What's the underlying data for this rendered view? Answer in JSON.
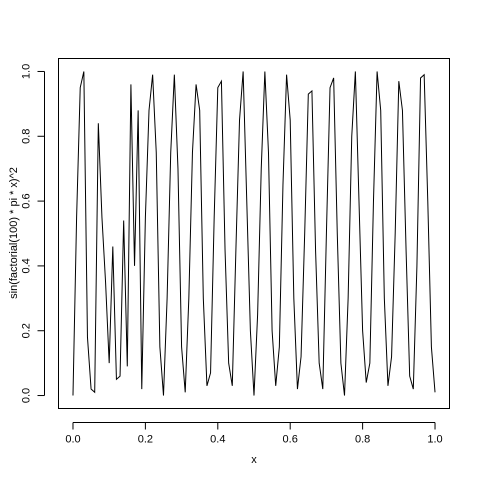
{
  "chart_data": {
    "type": "line",
    "xlabel": "x",
    "ylabel": "sin(factorial(100) * pi * x)^2",
    "color": "#000000",
    "x": [
      0,
      0.01,
      0.02,
      0.03,
      0.04,
      0.05,
      0.06,
      0.07,
      0.08,
      0.09,
      0.1,
      0.11,
      0.12,
      0.13,
      0.14,
      0.15,
      0.16,
      0.17,
      0.18,
      0.19,
      0.2,
      0.21,
      0.22,
      0.23,
      0.24,
      0.25,
      0.26,
      0.27,
      0.28,
      0.29,
      0.3,
      0.31,
      0.32,
      0.33,
      0.34,
      0.35,
      0.36,
      0.37,
      0.38,
      0.39,
      0.4,
      0.41,
      0.42,
      0.43,
      0.44,
      0.45,
      0.46,
      0.47,
      0.48,
      0.49,
      0.5,
      0.51,
      0.52,
      0.53,
      0.54,
      0.55,
      0.56,
      0.57,
      0.58,
      0.59,
      0.6,
      0.61,
      0.62,
      0.63,
      0.64,
      0.65,
      0.66,
      0.67,
      0.68,
      0.69,
      0.7,
      0.71,
      0.72,
      0.73,
      0.74,
      0.75,
      0.76,
      0.77,
      0.78,
      0.79,
      0.8,
      0.81,
      0.82,
      0.83,
      0.84,
      0.85,
      0.86,
      0.87,
      0.88,
      0.89,
      0.9,
      0.91,
      0.92,
      0.93,
      0.94,
      0.95,
      0.96,
      0.97,
      0.98,
      0.99,
      1
    ],
    "y": [
      0,
      0.55,
      0.95,
      1,
      0.18,
      0.02,
      0.01,
      0.84,
      0.55,
      0.35,
      0.1,
      0.46,
      0.05,
      0.06,
      0.54,
      0.09,
      0.96,
      0.4,
      0.88,
      0.02,
      0.55,
      0.88,
      0.99,
      0.75,
      0.15,
      0,
      0.3,
      0.75,
      0.99,
      0.7,
      0.15,
      0.01,
      0.3,
      0.75,
      0.96,
      0.88,
      0.3,
      0.03,
      0.07,
      0.55,
      0.95,
      0.97,
      0.45,
      0.1,
      0.03,
      0.45,
      0.85,
      1,
      0.6,
      0.2,
      0,
      0.25,
      0.7,
      1,
      0.75,
      0.2,
      0.03,
      0.15,
      0.65,
      0.99,
      0.85,
      0.3,
      0.02,
      0.12,
      0.5,
      0.93,
      0.94,
      0.45,
      0.1,
      0.02,
      0.5,
      0.95,
      0.98,
      0.5,
      0.1,
      0,
      0.3,
      0.8,
      1,
      0.6,
      0.2,
      0.04,
      0.1,
      0.6,
      1,
      0.88,
      0.3,
      0.03,
      0.12,
      0.5,
      0.97,
      0.88,
      0.45,
      0.06,
      0.02,
      0.4,
      0.98,
      0.99,
      0.6,
      0.15,
      0.01
    ],
    "xlim": [
      -0.04,
      1.04
    ],
    "ylim": [
      -0.04,
      1.04
    ],
    "xticks": [
      {
        "value": 0,
        "label": "0.0"
      },
      0.2,
      0.4,
      0.6,
      0.8,
      {
        "value": 1,
        "label": "1.0"
      }
    ],
    "yticks": [
      {
        "value": 0,
        "label": "0.0"
      },
      0.2,
      0.4,
      0.6,
      0.8,
      {
        "value": 1,
        "label": "1.0"
      }
    ]
  }
}
